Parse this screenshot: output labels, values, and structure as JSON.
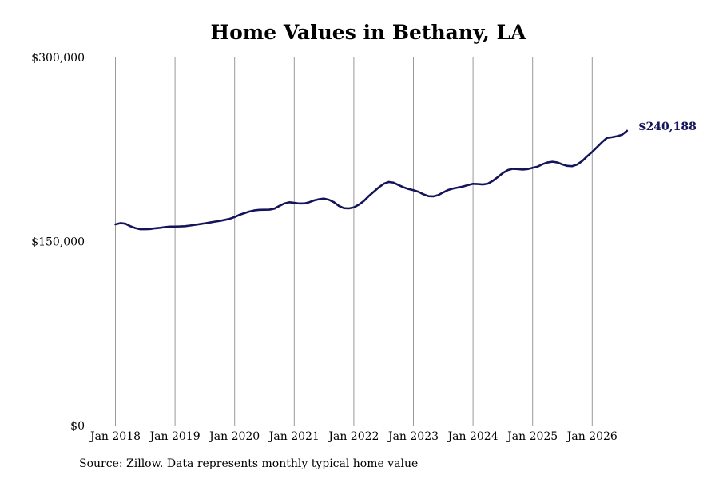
{
  "chart_data": {
    "type": "line",
    "title": "Home Values in Bethany, LA",
    "xlabel": "",
    "ylabel": "",
    "ylim": [
      0,
      300000
    ],
    "y_ticks": [
      {
        "value": 0,
        "label": "$0"
      },
      {
        "value": 150000,
        "label": "$150,000"
      },
      {
        "value": 300000,
        "label": "$300,000"
      }
    ],
    "x_ticks": [
      {
        "value": "2018-01",
        "label": "Jan 2018"
      },
      {
        "value": "2019-01",
        "label": "Jan 2019"
      },
      {
        "value": "2020-01",
        "label": "Jan 2020"
      },
      {
        "value": "2021-01",
        "label": "Jan 2021"
      },
      {
        "value": "2022-01",
        "label": "Jan 2022"
      },
      {
        "value": "2023-01",
        "label": "Jan 2023"
      },
      {
        "value": "2024-01",
        "label": "Jan 2024"
      },
      {
        "value": "2025-01",
        "label": "Jan 2025"
      },
      {
        "value": "2026-01",
        "label": "Jan 2026"
      }
    ],
    "grid": "vertical",
    "line_color": "#14145a",
    "series": [
      {
        "x": [
          "2018-01",
          "2018-02",
          "2018-03",
          "2018-04",
          "2018-05",
          "2018-06",
          "2018-07",
          "2018-08",
          "2018-09",
          "2018-10",
          "2018-11",
          "2018-12",
          "2019-01",
          "2019-02",
          "2019-03",
          "2019-04",
          "2019-05",
          "2019-06",
          "2019-07",
          "2019-08",
          "2019-09",
          "2019-10",
          "2019-11",
          "2019-12",
          "2020-01",
          "2020-02",
          "2020-03",
          "2020-04",
          "2020-05",
          "2020-06",
          "2020-07",
          "2020-08",
          "2020-09",
          "2020-10",
          "2020-11",
          "2020-12",
          "2021-01",
          "2021-02",
          "2021-03",
          "2021-04",
          "2021-05",
          "2021-06",
          "2021-07",
          "2021-08",
          "2021-09",
          "2021-10",
          "2021-11",
          "2021-12",
          "2022-01",
          "2022-02",
          "2022-03",
          "2022-04",
          "2022-05",
          "2022-06",
          "2022-07",
          "2022-08",
          "2022-09",
          "2022-10",
          "2022-11",
          "2022-12",
          "2023-01",
          "2023-02",
          "2023-03",
          "2023-04",
          "2023-05",
          "2023-06",
          "2023-07",
          "2023-08",
          "2023-09",
          "2023-10",
          "2023-11",
          "2023-12",
          "2024-01",
          "2024-02",
          "2024-03",
          "2024-04",
          "2024-05",
          "2024-06",
          "2024-07",
          "2024-08",
          "2024-09",
          "2024-10",
          "2024-11",
          "2024-12",
          "2025-01",
          "2025-02",
          "2025-03",
          "2025-04",
          "2025-05",
          "2025-06",
          "2025-07",
          "2025-08",
          "2025-09",
          "2025-10",
          "2025-11",
          "2025-12",
          "2026-01",
          "2026-02",
          "2026-03",
          "2026-04",
          "2026-05",
          "2026-06",
          "2026-07",
          "2026-08"
        ],
        "values": [
          164000,
          165000,
          164500,
          162500,
          161000,
          160000,
          160000,
          160200,
          160800,
          161200,
          161800,
          162200,
          162200,
          162300,
          162500,
          163000,
          163600,
          164200,
          164800,
          165500,
          166200,
          166800,
          167600,
          168500,
          170000,
          171800,
          173200,
          174500,
          175400,
          175800,
          175900,
          176000,
          176800,
          179000,
          181000,
          182000,
          181500,
          181000,
          181000,
          182000,
          183500,
          184500,
          185000,
          184000,
          182000,
          179000,
          177200,
          177000,
          177800,
          180000,
          183000,
          187000,
          190500,
          194000,
          197000,
          198500,
          198000,
          196000,
          194200,
          192800,
          191800,
          190500,
          188500,
          187000,
          186800,
          187800,
          190000,
          192000,
          193200,
          194000,
          194800,
          196000,
          197000,
          196800,
          196500,
          197200,
          199500,
          202500,
          205800,
          208200,
          209200,
          209000,
          208600,
          209000,
          210000,
          211000,
          213000,
          214400,
          215000,
          214400,
          212800,
          211600,
          211400,
          212800,
          215600,
          219500,
          223000,
          227000,
          231000,
          234500,
          235000,
          235800,
          237000,
          240188
        ]
      }
    ],
    "end_label": "$240,188"
  },
  "source": "Source: Zillow. Data represents monthly typical home value"
}
